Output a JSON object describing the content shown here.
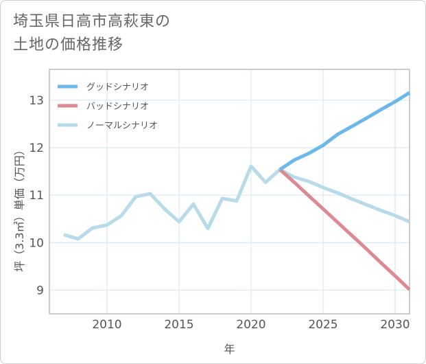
{
  "title_line1": "埼玉県日高市高萩東の",
  "title_line2": "土地の価格推移",
  "chart_data": {
    "type": "line",
    "xlabel": "年",
    "ylabel": "坪（3.3㎡）単価（万円）",
    "xlim": [
      2006,
      2031
    ],
    "ylim": [
      8.5,
      13.65
    ],
    "x_ticks": [
      2010,
      2015,
      2020,
      2025,
      2030
    ],
    "y_ticks": [
      9,
      10,
      11,
      12,
      13
    ],
    "grid": true,
    "legend_position": "top-left",
    "series": [
      {
        "name": "グッドシナリオ",
        "color": "#6cb8ea",
        "x": [
          2022,
          2023,
          2024,
          2025,
          2026,
          2027,
          2028,
          2029,
          2030,
          2031
        ],
        "values": [
          11.54,
          11.74,
          11.88,
          12.05,
          12.28,
          12.45,
          12.62,
          12.8,
          12.97,
          13.16
        ]
      },
      {
        "name": "バッドシナリオ",
        "color": "#dc8a92",
        "x": [
          2022,
          2023,
          2024,
          2025,
          2026,
          2027,
          2028,
          2029,
          2030,
          2031
        ],
        "values": [
          11.54,
          11.27,
          10.99,
          10.71,
          10.43,
          10.15,
          9.87,
          9.58,
          9.3,
          9.01
        ]
      },
      {
        "name": "ノーマルシナリオ",
        "color": "#b8dbea",
        "x": [
          2007,
          2008,
          2009,
          2010,
          2011,
          2012,
          2013,
          2014,
          2015,
          2016,
          2017,
          2018,
          2019,
          2020,
          2021,
          2022,
          2023,
          2024,
          2025,
          2026,
          2027,
          2028,
          2029,
          2030,
          2031
        ],
        "values": [
          10.17,
          10.08,
          10.31,
          10.37,
          10.57,
          10.97,
          11.03,
          10.71,
          10.44,
          10.81,
          10.3,
          10.93,
          10.88,
          11.61,
          11.27,
          11.54,
          11.38,
          11.29,
          11.16,
          11.05,
          10.92,
          10.8,
          10.68,
          10.57,
          10.44
        ]
      }
    ]
  }
}
